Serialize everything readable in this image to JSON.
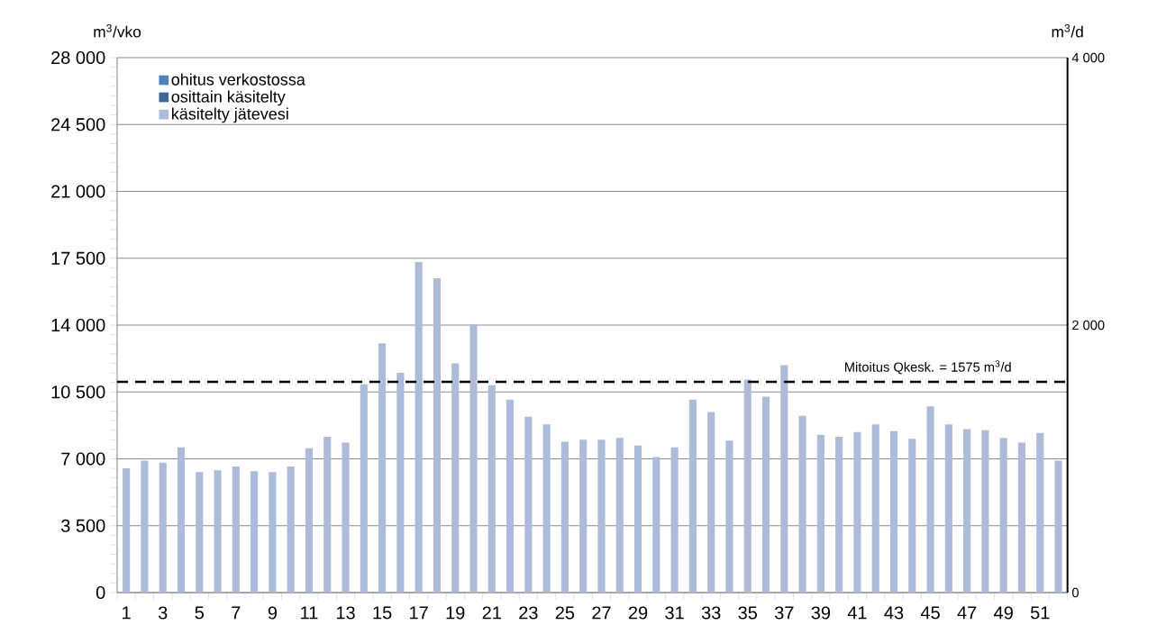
{
  "chart_data": {
    "type": "bar",
    "stacked": true,
    "ylabel": "m$^{3}$/vko",
    "y2label": "m$^{3}$/d",
    "categories": [
      "1",
      null,
      "3",
      null,
      "5",
      null,
      "7",
      null,
      "9",
      null,
      "11",
      null,
      "13",
      null,
      "15",
      null,
      "17",
      null,
      "19",
      null,
      "21",
      null,
      "23",
      null,
      "25",
      null,
      "27",
      null,
      "29",
      null,
      "31",
      null,
      "33",
      null,
      "35",
      null,
      "37",
      null,
      "39",
      null,
      "41",
      null,
      "43",
      null,
      "45",
      null,
      "47",
      null,
      "49",
      null,
      "51",
      null
    ],
    "series": [
      {
        "name": "käsitelty jätevesi",
        "color": "#abbbd9",
        "values": [
          6500,
          6900,
          6800,
          7600,
          6300,
          6400,
          6600,
          6350,
          6300,
          6600,
          7550,
          8150,
          7850,
          10900,
          13050,
          11500,
          17300,
          16450,
          12000,
          14050,
          10850,
          10100,
          9200,
          8800,
          7900,
          8000,
          8000,
          8100,
          7700,
          7100,
          7600,
          10100,
          9450,
          7950,
          11150,
          10250,
          11900,
          9250,
          8250,
          8150,
          8400,
          8800,
          8450,
          8050,
          9750,
          8800,
          8550,
          8500,
          8100,
          7850,
          8350,
          6900
        ]
      },
      {
        "name": "osittain käsitelty",
        "color": "#3f6797",
        "values": [
          0,
          0,
          0,
          0,
          0,
          0,
          0,
          0,
          0,
          0,
          0,
          0,
          0,
          0,
          0,
          0,
          0,
          0,
          0,
          0,
          0,
          0,
          0,
          0,
          0,
          0,
          0,
          0,
          0,
          0,
          0,
          0,
          0,
          0,
          0,
          0,
          0,
          0,
          0,
          0,
          0,
          0,
          0,
          0,
          0,
          0,
          0,
          0,
          0,
          0,
          0,
          0
        ]
      },
      {
        "name": "ohitus verkostossa",
        "color": "#4f81bd",
        "values": [
          0,
          0,
          0,
          0,
          0,
          0,
          0,
          0,
          0,
          0,
          0,
          0,
          0,
          0,
          0,
          0,
          0,
          0,
          0,
          0,
          0,
          0,
          0,
          0,
          0,
          0,
          0,
          0,
          0,
          0,
          0,
          0,
          0,
          0,
          0,
          0,
          0,
          0,
          0,
          0,
          0,
          0,
          0,
          0,
          0,
          0,
          0,
          0,
          0,
          0,
          0,
          0
        ]
      }
    ],
    "ylim": [
      0,
      28000
    ],
    "yticks": [
      0,
      {
        "value": 3500,
        "label": "3 500"
      },
      {
        "value": 7000,
        "label": "7 000"
      },
      {
        "value": 10500,
        "label": "10 500"
      },
      {
        "value": 14000,
        "label": "14 000"
      },
      {
        "value": 17500,
        "label": "17 500"
      },
      {
        "value": 21000,
        "label": "21 000"
      },
      {
        "value": 24500,
        "label": "24 500"
      },
      {
        "value": 28000,
        "label": "28 000"
      }
    ],
    "y2lim": [
      0,
      4000
    ],
    "y2ticks": [
      0,
      {
        "value": 2000,
        "label": "2 000"
      },
      {
        "value": 4000,
        "label": "4 000"
      }
    ],
    "ref_lines": [
      {
        "axis": "y2",
        "value": 1575,
        "label": "Mitoitus Qkesk. = 1575 m$^{3}$/d",
        "color": "#000000",
        "line_style": "dashed"
      }
    ],
    "grid": "y",
    "legend": "top left"
  }
}
